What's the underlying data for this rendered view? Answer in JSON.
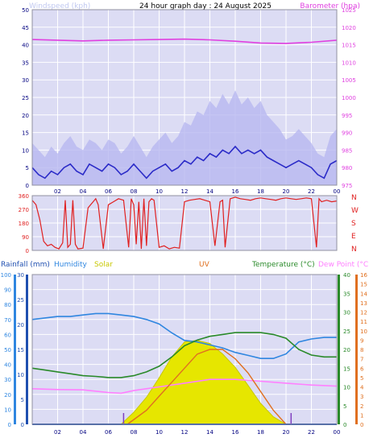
{
  "title": "24 hour graph day : 24 August 2025",
  "colors": {
    "plot_bg": "#dcdcf4",
    "grid": "#ffffff",
    "axis_text": "#000080",
    "windspeed": "#2b2bc8",
    "gust": "#b8b8f0",
    "barometer": "#e040e0",
    "direction": "#e02020",
    "humidity": "#2f86e0",
    "temperature": "#2a8a2a",
    "dewpoint": "#ff80ff",
    "solar": "#e6e600",
    "uv": "#e07020",
    "rain": "#1f4fb0",
    "frame": "#9090a0"
  },
  "top_panel": {
    "left_label": "Windspeed (kph)",
    "right_label": "Barometer (hpa)",
    "left_ticks": [
      "0",
      "5",
      "10",
      "15",
      "20",
      "25",
      "30",
      "35",
      "40",
      "45",
      "50"
    ],
    "right_ticks": [
      "975",
      "980",
      "985",
      "990",
      "995",
      "1000",
      "1005",
      "1010",
      "1015",
      "1020",
      "1025"
    ]
  },
  "dir_panel": {
    "left_ticks": [
      "0",
      "90",
      "180",
      "270",
      "360"
    ],
    "compass": [
      "N",
      "W",
      "S",
      "E",
      "N"
    ]
  },
  "bottom_panel": {
    "legend": {
      "rainfall": "Rainfall (mm)",
      "humidity": "Humidity",
      "solar": "Solar",
      "uv": "UV",
      "temperature": "Temperature (°C)",
      "dewpoint": "Dew Point (°C)"
    },
    "humidity_ticks": [
      "0",
      "10",
      "20",
      "30",
      "40",
      "50",
      "60",
      "70",
      "80",
      "90",
      "100"
    ],
    "rain_ticks": [
      "0",
      "5",
      "10",
      "15",
      "20",
      "25",
      "30"
    ],
    "temp_ticks": [
      "0",
      "5",
      "10",
      "15",
      "20",
      "25",
      "30",
      "35",
      "40"
    ],
    "uv_ticks": [
      "0",
      "1",
      "2",
      "3",
      "4",
      "5",
      "6",
      "7",
      "8",
      "9",
      "10",
      "11",
      "12",
      "13",
      "14",
      "15",
      "16"
    ]
  },
  "x_ticks": [
    "02",
    "04",
    "06",
    "08",
    "10",
    "12",
    "14",
    "16",
    "18",
    "20",
    "22",
    "00"
  ],
  "chart_data": [
    {
      "type": "line",
      "title": "24 hour graph day : 24 August 2025",
      "x_unit": "hour",
      "xlim": [
        0,
        24
      ],
      "ylabel_left": "Windspeed (kph)",
      "ylabel_right": "Barometer (hpa)",
      "ylim_left": [
        0,
        50
      ],
      "ylim_right": [
        975,
        1025
      ],
      "series": [
        {
          "name": "Windspeed (kph)",
          "axis": "left",
          "x": [
            0,
            0.5,
            1,
            1.5,
            2,
            2.5,
            3,
            3.5,
            4,
            4.5,
            5,
            5.5,
            6,
            6.5,
            7,
            7.5,
            8,
            8.5,
            9,
            9.5,
            10,
            10.5,
            11,
            11.5,
            12,
            12.5,
            13,
            13.5,
            14,
            14.5,
            15,
            15.5,
            16,
            16.5,
            17,
            17.5,
            18,
            18.5,
            19,
            19.5,
            20,
            20.5,
            21,
            21.5,
            22,
            22.5,
            23,
            23.5,
            24
          ],
          "values": [
            5,
            3,
            2,
            4,
            3,
            5,
            6,
            4,
            3,
            6,
            5,
            4,
            6,
            5,
            3,
            4,
            6,
            4,
            2,
            4,
            5,
            6,
            4,
            5,
            7,
            6,
            8,
            7,
            9,
            8,
            10,
            9,
            11,
            9,
            10,
            9,
            10,
            8,
            7,
            6,
            5,
            6,
            7,
            6,
            5,
            3,
            2,
            6,
            7
          ]
        },
        {
          "name": "Wind gust",
          "axis": "left",
          "x": [
            0,
            0.5,
            1,
            1.5,
            2,
            2.5,
            3,
            3.5,
            4,
            4.5,
            5,
            5.5,
            6,
            6.5,
            7,
            7.5,
            8,
            8.5,
            9,
            9.5,
            10,
            10.5,
            11,
            11.5,
            12,
            12.5,
            13,
            13.5,
            14,
            14.5,
            15,
            15.5,
            16,
            16.5,
            17,
            17.5,
            18,
            18.5,
            19,
            19.5,
            20,
            20.5,
            21,
            21.5,
            22,
            22.5,
            23,
            23.5,
            24
          ],
          "values": [
            12,
            10,
            8,
            11,
            9,
            12,
            14,
            11,
            10,
            13,
            12,
            10,
            13,
            12,
            9,
            11,
            14,
            11,
            8,
            11,
            13,
            15,
            12,
            14,
            18,
            17,
            21,
            20,
            24,
            22,
            26,
            23,
            27,
            23,
            25,
            22,
            24,
            20,
            18,
            16,
            13,
            14,
            16,
            14,
            12,
            9,
            8,
            14,
            16
          ]
        },
        {
          "name": "Barometer (hpa)",
          "axis": "right",
          "x": [
            0,
            2,
            4,
            6,
            8,
            10,
            12,
            14,
            16,
            18,
            20,
            22,
            24
          ],
          "values": [
            1016.5,
            1016.3,
            1016.1,
            1016.3,
            1016.4,
            1016.5,
            1016.6,
            1016.4,
            1016.0,
            1015.5,
            1015.4,
            1015.7,
            1016.3
          ]
        }
      ]
    },
    {
      "type": "line",
      "title": "",
      "x_unit": "hour",
      "xlim": [
        0,
        24
      ],
      "ylim": [
        0,
        360
      ],
      "series": [
        {
          "name": "Wind direction",
          "axis": "left",
          "x": [
            0,
            0.3,
            0.6,
            0.9,
            1.2,
            1.5,
            1.8,
            2.1,
            2.4,
            2.6,
            2.8,
            3.0,
            3.2,
            3.4,
            3.6,
            4.0,
            4.4,
            4.8,
            5.0,
            5.2,
            5.6,
            6.0,
            6.4,
            6.8,
            7.2,
            7.6,
            7.8,
            8.0,
            8.2,
            8.4,
            8.6,
            8.8,
            9.0,
            9.2,
            9.4,
            9.6,
            10.0,
            10.4,
            10.8,
            11.2,
            11.6,
            12.0,
            12.4,
            12.8,
            13.2,
            13.6,
            14.0,
            14.4,
            14.8,
            15.0,
            15.2,
            15.6,
            16.0,
            16.4,
            16.8,
            17.2,
            17.6,
            18.0,
            18.4,
            18.8,
            19.2,
            19.6,
            20.0,
            20.4,
            20.8,
            21.2,
            21.6,
            22.0,
            22.4,
            22.6,
            22.8,
            23.2,
            23.6,
            24.0
          ],
          "values": [
            330,
            300,
            200,
            60,
            30,
            40,
            20,
            10,
            50,
            330,
            20,
            40,
            330,
            40,
            10,
            15,
            280,
            320,
            340,
            300,
            10,
            300,
            320,
            340,
            330,
            20,
            340,
            300,
            40,
            320,
            10,
            340,
            30,
            320,
            340,
            330,
            20,
            30,
            10,
            20,
            15,
            320,
            330,
            335,
            340,
            330,
            320,
            30,
            320,
            330,
            20,
            340,
            350,
            340,
            335,
            330,
            340,
            345,
            340,
            335,
            330,
            340,
            345,
            340,
            335,
            340,
            345,
            340,
            20,
            340,
            320,
            330,
            320,
            325
          ]
        }
      ]
    },
    {
      "type": "line",
      "title": "",
      "x_unit": "hour",
      "xlim": [
        0,
        24
      ],
      "ylabel_left": "Humidity",
      "ylabel_right": "Temperature (°C)",
      "ylim_humidity": [
        0,
        100
      ],
      "ylim_temp": [
        0,
        40
      ],
      "ylim_uv": [
        0,
        16
      ],
      "series": [
        {
          "name": "Humidity",
          "axis": "humidity",
          "x": [
            0,
            1,
            2,
            3,
            4,
            5,
            6,
            7,
            8,
            9,
            10,
            11,
            12,
            13,
            14,
            15,
            16,
            17,
            18,
            19,
            20,
            21,
            22,
            23,
            24
          ],
          "values": [
            70,
            71,
            72,
            72,
            73,
            74,
            74,
            73,
            72,
            70,
            67,
            61,
            56,
            55,
            53,
            51,
            48,
            46,
            44,
            44,
            47,
            55,
            57,
            58,
            58
          ]
        },
        {
          "name": "Temperature (°C)",
          "axis": "temp",
          "x": [
            0,
            1,
            2,
            3,
            4,
            5,
            6,
            7,
            8,
            9,
            10,
            11,
            12,
            13,
            14,
            15,
            16,
            17,
            18,
            19,
            20,
            21,
            22,
            23,
            24
          ],
          "values": [
            15,
            14.5,
            14,
            13.5,
            13,
            12.8,
            12.5,
            12.5,
            13,
            14,
            15.5,
            18,
            21,
            22.5,
            23.5,
            24,
            24.5,
            24.5,
            24.5,
            24,
            23,
            20,
            18.5,
            18,
            18
          ]
        },
        {
          "name": "Dew Point (°C)",
          "axis": "temp",
          "x": [
            0,
            2,
            4,
            6,
            7,
            8,
            10,
            12,
            14,
            16,
            18,
            20,
            22,
            24
          ],
          "values": [
            9.5,
            9.3,
            9.2,
            8.5,
            8.3,
            9,
            10,
            11,
            12,
            12,
            11.5,
            11,
            10.5,
            10.2
          ]
        },
        {
          "name": "Solar",
          "axis": "humidity",
          "x": [
            7,
            8,
            9,
            10,
            11,
            12,
            13,
            14,
            15,
            16,
            17,
            18,
            19,
            20
          ],
          "values": [
            0,
            8,
            18,
            31,
            45,
            55,
            56,
            54,
            47,
            38,
            26,
            14,
            5,
            0
          ]
        },
        {
          "name": "UV",
          "axis": "uv",
          "x": [
            7.5,
            9,
            10,
            11,
            12,
            13,
            14,
            15,
            16,
            17,
            18,
            19,
            20
          ],
          "values": [
            0,
            1.5,
            3,
            4.5,
            6,
            7.5,
            8,
            8,
            7,
            5.5,
            3.5,
            1.5,
            0
          ]
        },
        {
          "name": "Rainfall (mm)",
          "axis": "humidity",
          "x": [
            0,
            24
          ],
          "values": [
            0,
            0
          ]
        }
      ]
    }
  ]
}
